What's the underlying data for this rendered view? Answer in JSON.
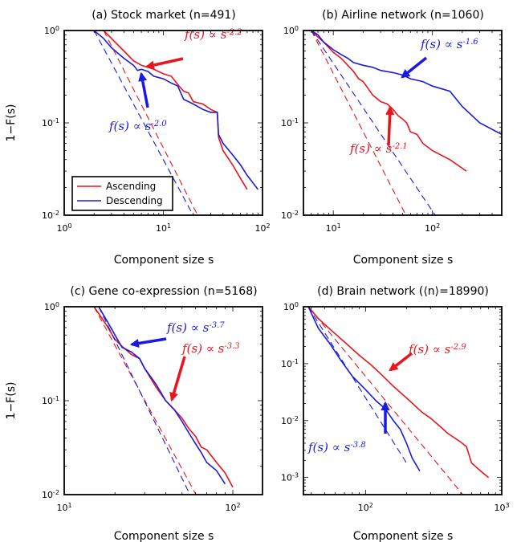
{
  "figure": {
    "ylabel": "1−F(s)",
    "legend": {
      "placement": "lower-left of panel (a)",
      "entries": [
        "Ascending",
        "Descending"
      ]
    },
    "colors": {
      "ascending": "#e8141e",
      "descending": "#1a1ae0"
    }
  },
  "chart_data": [
    {
      "type": "line",
      "title": "(a) Stock market (n=491)",
      "xlabel": "Component size s",
      "ylabel": "1−F(s)",
      "xscale": "log",
      "yscale": "log",
      "xlim": [
        1,
        100
      ],
      "ylim": [
        0.01,
        1
      ],
      "xticks": [
        {
          "v": 1,
          "label": "10^0"
        },
        {
          "v": 10,
          "label": "10^1"
        },
        {
          "v": 100,
          "label": "10^2"
        }
      ],
      "yticks": [
        {
          "v": 1,
          "label": "10^0"
        },
        {
          "v": 0.1,
          "label": "10^-1"
        },
        {
          "v": 0.01,
          "label": "10^-2"
        }
      ],
      "series": [
        {
          "name": "Ascending",
          "color": "#e8141e",
          "dashed": false,
          "x": [
            2.5,
            3,
            4,
            5,
            6,
            7,
            8,
            10,
            12,
            14,
            16,
            18,
            20,
            25,
            30,
            35,
            36,
            40,
            50,
            60,
            70
          ],
          "y": [
            1,
            0.82,
            0.6,
            0.47,
            0.42,
            0.4,
            0.38,
            0.34,
            0.32,
            0.26,
            0.22,
            0.21,
            0.17,
            0.16,
            0.14,
            0.13,
            0.07,
            0.05,
            0.035,
            0.025,
            0.019
          ]
        },
        {
          "name": "Descending",
          "color": "#1a1ae0",
          "dashed": false,
          "x": [
            2,
            2.5,
            3,
            4,
            5,
            5.5,
            6,
            7,
            8,
            10,
            12,
            14,
            16,
            20,
            25,
            30,
            35,
            36,
            40,
            50,
            60,
            70,
            90
          ],
          "y": [
            1,
            0.82,
            0.65,
            0.5,
            0.42,
            0.37,
            0.38,
            0.36,
            0.32,
            0.3,
            0.27,
            0.25,
            0.18,
            0.16,
            0.14,
            0.13,
            0.13,
            0.075,
            0.06,
            0.045,
            0.035,
            0.027,
            0.019
          ]
        },
        {
          "name": "fit ascending",
          "color": "#e8141e",
          "dashed": true,
          "x": [
            2.5,
            90
          ],
          "y": [
            1,
            0.00052
          ]
        },
        {
          "name": "fit descending",
          "color": "#1a1ae0",
          "dashed": true,
          "x": [
            2,
            95
          ],
          "y": [
            1,
            0.00044
          ]
        }
      ],
      "annotations": [
        {
          "text": "f(s) ∝ s^-2.2",
          "color": "#e8141e",
          "x": 18,
          "y": 0.68
        },
        {
          "text": "f(s) ∝ s^-2.0",
          "color": "#1a1ae0",
          "x": 1.3,
          "y": 0.078
        }
      ]
    },
    {
      "type": "line",
      "title": "(b) Airline network (n=1060)",
      "xlabel": "Component size s",
      "ylabel": "1−F(s)",
      "xscale": "log",
      "yscale": "log",
      "xlim": [
        5,
        500
      ],
      "ylim": [
        0.01,
        1
      ],
      "xticks": [
        {
          "v": 10,
          "label": "10^1"
        },
        {
          "v": 100,
          "label": "10^2"
        }
      ],
      "yticks": [
        {
          "v": 1,
          "label": "10^0"
        },
        {
          "v": 0.1,
          "label": "10^-1"
        },
        {
          "v": 0.01,
          "label": "10^-2"
        }
      ],
      "series": [
        {
          "name": "Ascending",
          "color": "#e8141e",
          "dashed": false,
          "x": [
            6,
            7,
            8,
            10,
            12,
            14,
            16,
            18,
            20,
            25,
            30,
            35,
            40,
            45,
            50,
            55,
            60,
            70,
            80,
            100,
            150,
            220
          ],
          "y": [
            1,
            0.85,
            0.75,
            0.58,
            0.5,
            0.42,
            0.36,
            0.3,
            0.28,
            0.2,
            0.17,
            0.16,
            0.14,
            0.12,
            0.11,
            0.1,
            0.08,
            0.075,
            0.06,
            0.05,
            0.04,
            0.03
          ]
        },
        {
          "name": "Descending",
          "color": "#1a1ae0",
          "dashed": false,
          "x": [
            6,
            7,
            8,
            10,
            12,
            14,
            16,
            20,
            25,
            30,
            40,
            50,
            60,
            80,
            100,
            150,
            200,
            300,
            500
          ],
          "y": [
            1,
            0.9,
            0.75,
            0.62,
            0.55,
            0.5,
            0.45,
            0.42,
            0.4,
            0.37,
            0.35,
            0.33,
            0.3,
            0.28,
            0.25,
            0.22,
            0.15,
            0.1,
            0.075
          ]
        },
        {
          "name": "fit ascending",
          "color": "#e8141e",
          "dashed": true,
          "x": [
            6,
            230
          ],
          "y": [
            1,
            0.00048
          ]
        },
        {
          "name": "fit descending",
          "color": "#1a1ae0",
          "dashed": true,
          "x": [
            6,
            500
          ],
          "y": [
            1,
            0.00084
          ]
        }
      ],
      "annotations": [
        {
          "text": "f(s) ∝ s^-1.6",
          "color": "#1a1ae0",
          "x": 90,
          "y": 0.65
        },
        {
          "text": "f(s) ∝ s^-2.1",
          "color": "#e8141e",
          "x": 16,
          "y": 0.032
        }
      ]
    },
    {
      "type": "line",
      "title": "(c) Gene co-expression (n=5168)",
      "xlabel": "Component size s",
      "ylabel": "1−F(s)",
      "xscale": "log",
      "yscale": "log",
      "xlim": [
        10,
        150
      ],
      "ylim": [
        0.01,
        1
      ],
      "xticks": [
        {
          "v": 10,
          "label": "10^1"
        },
        {
          "v": 100,
          "label": "10^2"
        }
      ],
      "yticks": [
        {
          "v": 1,
          "label": "10^0"
        },
        {
          "v": 0.1,
          "label": "10^-1"
        },
        {
          "v": 0.01,
          "label": "10^-2"
        }
      ],
      "series": [
        {
          "name": "Ascending",
          "color": "#e8141e",
          "dashed": false,
          "x": [
            15,
            16,
            18,
            20,
            22,
            25,
            28,
            30,
            35,
            40,
            45,
            50,
            55,
            60,
            65,
            70,
            80,
            90,
            100
          ],
          "y": [
            1,
            0.85,
            0.62,
            0.45,
            0.38,
            0.31,
            0.28,
            0.22,
            0.14,
            0.1,
            0.08,
            0.065,
            0.05,
            0.042,
            0.032,
            0.03,
            0.022,
            0.017,
            0.012
          ]
        },
        {
          "name": "Descending",
          "color": "#1a1ae0",
          "dashed": false,
          "x": [
            16,
            18,
            20,
            22,
            25,
            28,
            30,
            35,
            40,
            45,
            50,
            55,
            60,
            65,
            70,
            80,
            90
          ],
          "y": [
            1,
            0.7,
            0.5,
            0.37,
            0.33,
            0.28,
            0.22,
            0.15,
            0.1,
            0.08,
            0.06,
            0.045,
            0.035,
            0.028,
            0.022,
            0.018,
            0.013
          ]
        },
        {
          "name": "fit ascending",
          "color": "#e8141e",
          "dashed": true,
          "x": [
            15,
            100
          ],
          "y": [
            1,
            0.0019
          ]
        },
        {
          "name": "fit descending",
          "color": "#1a1ae0",
          "dashed": true,
          "x": [
            16,
            85
          ],
          "y": [
            1,
            0.0021
          ]
        }
      ],
      "annotations": [
        {
          "text": "f(s) ∝ s^-3.7",
          "color": "#1a1ae0",
          "x": 54,
          "y": 0.6
        },
        {
          "text": "f(s) ∝ s^-3.3",
          "color": "#e8141e",
          "x": 53,
          "y": 0.32
        }
      ]
    },
    {
      "type": "line",
      "title": "(d) Brain network (⟨n⟩=18990)",
      "xlabel": "Component size s",
      "ylabel": "1−F(s)",
      "xscale": "log",
      "yscale": "log",
      "xlim": [
        35,
        1000
      ],
      "ylim": [
        0.0005,
        1
      ],
      "xticks": [
        {
          "v": 100,
          "label": "10^2"
        },
        {
          "v": 1000,
          "label": "10^3"
        }
      ],
      "yticks": [
        {
          "v": 1,
          "label": "10^0"
        },
        {
          "v": 0.1,
          "label": "10^-1"
        },
        {
          "v": 0.01,
          "label": "10^-2"
        },
        {
          "v": 0.001,
          "label": "10^-3"
        }
      ],
      "series": [
        {
          "name": "Ascending",
          "color": "#e8141e",
          "dashed": false,
          "x": [
            38,
            45,
            55,
            70,
            90,
            110,
            130,
            160,
            200,
            260,
            300,
            350,
            400,
            500,
            550,
            600,
            700,
            800
          ],
          "y": [
            1,
            0.62,
            0.4,
            0.24,
            0.14,
            0.095,
            0.065,
            0.04,
            0.025,
            0.014,
            0.011,
            0.008,
            0.006,
            0.0042,
            0.0035,
            0.0018,
            0.0013,
            0.001
          ]
        },
        {
          "name": "Descending",
          "color": "#1a1ae0",
          "dashed": false,
          "x": [
            38,
            45,
            55,
            65,
            80,
            100,
            120,
            140,
            160,
            180,
            200,
            220,
            250
          ],
          "y": [
            1,
            0.42,
            0.22,
            0.12,
            0.06,
            0.035,
            0.022,
            0.016,
            0.01,
            0.007,
            0.004,
            0.0022,
            0.0013
          ]
        },
        {
          "name": "fit ascending",
          "color": "#e8141e",
          "dashed": true,
          "x": [
            38,
            900
          ],
          "y": [
            1,
            0.0001
          ]
        },
        {
          "name": "fit descending",
          "color": "#1a1ae0",
          "dashed": true,
          "x": [
            38,
            200
          ],
          "y": [
            1,
            0.0018
          ]
        }
      ],
      "annotations": [
        {
          "text": "f(s) ∝ s^-2.9",
          "color": "#e8141e",
          "x": 230,
          "y": 0.55
        },
        {
          "text": "f(s) ∝ s^-3.8",
          "color": "#1a1ae0",
          "x": 54,
          "y": 0.0018
        }
      ]
    }
  ]
}
